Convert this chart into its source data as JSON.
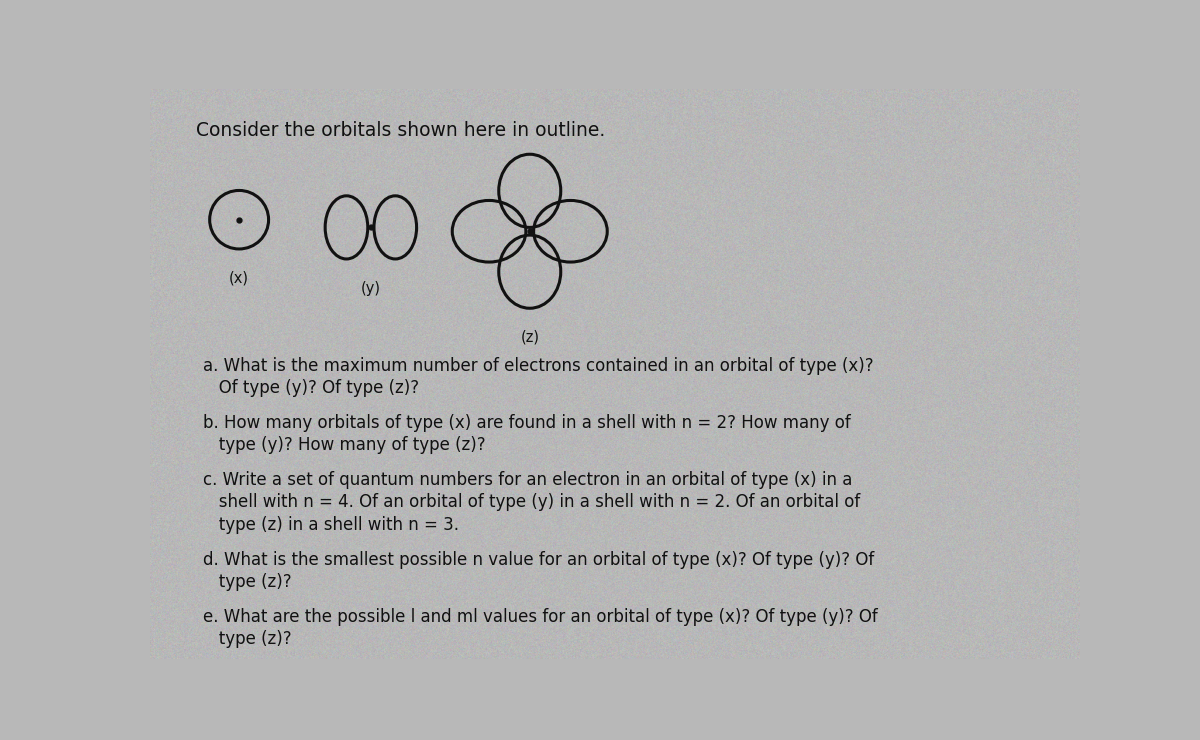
{
  "background_color": "#b8b8b8",
  "title": "Consider the orbitals shown here in outline.",
  "title_fontsize": 13.5,
  "orbital_labels": [
    "(x)",
    "(y)",
    "(z)"
  ],
  "orbital_label_fontsize": 10.5,
  "text_color": "#111111",
  "line_color": "#111111",
  "line_width": 2.2,
  "question_lines": [
    [
      "a. What is the maximum number of electrons contained in an orbital of type (x)?",
      0
    ],
    [
      "   Of type (y)? Of type (z)?",
      1
    ],
    [
      "b. How many orbitals of type (x) are found in a shell with n = 2? How many of",
      0
    ],
    [
      "   type (y)? How many of type (z)?",
      1
    ],
    [
      "c. Write a set of quantum numbers for an electron in an orbital of type (x) in a",
      0
    ],
    [
      "   shell with n = 4. Of an orbital of type (y) in a shell with n = 2. Of an orbital of",
      1
    ],
    [
      "   type (z) in a shell with n = 3.",
      1
    ],
    [
      "d. What is the smallest possible n value for an orbital of type (x)? Of type (y)? Of",
      0
    ],
    [
      "   type (z)?",
      1
    ],
    [
      "e. What are the possible l and ml values for an orbital of type (x)? Of type (y)? Of",
      0
    ],
    [
      "   type (z)?",
      1
    ]
  ],
  "question_fontsize": 12.0
}
